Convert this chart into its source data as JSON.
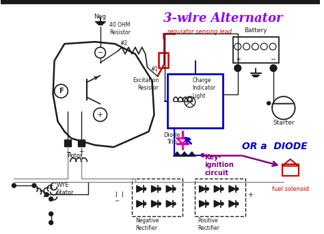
{
  "title": "3-wire Alternator",
  "title_color": "#8B00FF",
  "bg_color": "#FFFFFF",
  "labels": {
    "neg": "Neg",
    "resistor_40": "40 OHM\nResistor",
    "reg_lead": "regulator sensing lead",
    "battery": "Battery",
    "excitation": "Excitation\nResistor",
    "charge_light": "Charge\nIndicator\nLight",
    "starter": "Starter",
    "key_ignition": "Key-\nignition\ncircuit",
    "or_diode": "OR a  DIODE",
    "fuel_solenoid": "fuel solenoid",
    "diode_trio": "Diode\nTrio",
    "rotor": "Rotor",
    "wye_stator": "WYE\nStator",
    "neg_rect": "Negative\nRectifier",
    "pos_rect": "Positive\nRectifier",
    "F": "F",
    "hash1": "#1",
    "hash2": "#2"
  },
  "colors": {
    "black": "#1a1a1a",
    "blue": "#0000CC",
    "red": "#CC0000",
    "purple": "#800080",
    "magenta": "#DD00AA",
    "gray": "#888888",
    "dark_gray": "#444444"
  }
}
